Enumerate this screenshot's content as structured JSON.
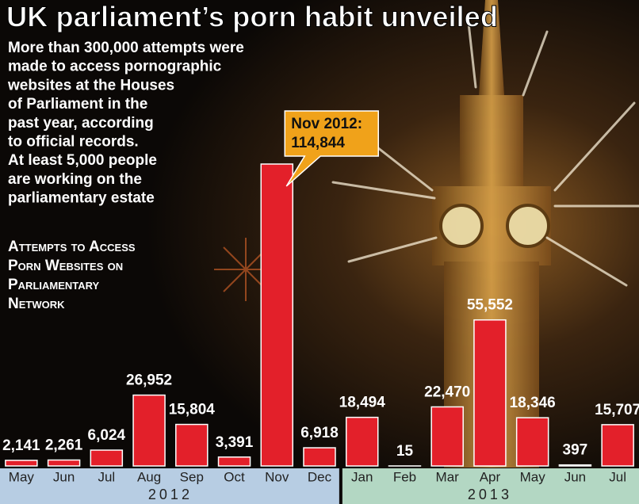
{
  "chart_data": {
    "type": "bar",
    "title": "UK parliament’s porn habit unveiled",
    "intro_lines": [
      "More than 300,000 attempts were",
      "made to access pornographic",
      "websites at the Houses",
      "of Parliament in the",
      "past year, according",
      "to official records.",
      "At least 5,000 people",
      "are working on the",
      "parliamentary estate"
    ],
    "subtitle_lines": [
      "Attempts to Access",
      "Porn Websites on",
      "Parliamentary",
      "Network"
    ],
    "callout": "Nov 2012:",
    "groups": [
      {
        "name": "2012",
        "categories": [
          "May",
          "Jun",
          "Jul",
          "Aug",
          "Sep",
          "Oct",
          "Nov",
          "Dec"
        ]
      },
      {
        "name": "2013",
        "categories": [
          "Jan",
          "Feb",
          "Mar",
          "Apr",
          "May",
          "Jun",
          "Jul"
        ]
      }
    ],
    "values": [
      2141,
      2261,
      6024,
      26952,
      15804,
      3391,
      114844,
      6918,
      18494,
      15,
      22470,
      55552,
      18346,
      397,
      15707
    ],
    "value_labels": [
      "2,141",
      "2,261",
      "6,024",
      "26,952",
      "15,804",
      "3,391",
      "114,844",
      "6,918",
      "18,494",
      "15",
      "22,470",
      "55,552",
      "18,346",
      "397",
      "15,707"
    ],
    "color": "#e3202a",
    "group_colors": [
      "#b7cde3",
      "#b3d7c3"
    ]
  }
}
